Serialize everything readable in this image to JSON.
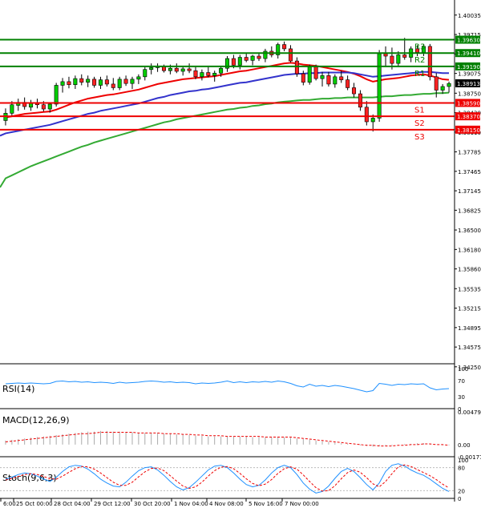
{
  "chart_data": [
    {
      "type": "candlestick",
      "panel": "price",
      "title": "",
      "xlabel": "",
      "ylabel": "",
      "ylim": [
        1.343,
        1.4023
      ],
      "y_ticks": [
        "1.40035",
        "1.39715",
        "1.39395",
        "1.39075",
        "1.38750",
        "1.38430",
        "1.38110",
        "1.37785",
        "1.37465",
        "1.37145",
        "1.36825",
        "1.36500",
        "1.36180",
        "1.35860",
        "1.35535",
        "1.35215",
        "1.34895",
        "1.34575",
        "1.34250"
      ],
      "x_ticks": [
        "24 Oct 16:00",
        "25 Oct 00:00",
        "28 Oct 04:00",
        "29 Oct 12:00",
        "30 Oct 20:00",
        "1 Nov 04:00",
        "4 Nov 08:00",
        "5 Nov 16:00",
        "7 Nov 00:00"
      ],
      "x_tick_display": [
        "6:00",
        "25 Oct 00:00",
        "28 Oct 04:00",
        "29 Oct 12:00",
        "30 Oct 20:00",
        "1 Nov 04:00",
        "4 Nov 08:00",
        "5 Nov 16:00",
        "7 Nov 00:00"
      ],
      "current_price": "1.38913",
      "levels": [
        {
          "name": "R3",
          "value": "1.39630",
          "color": "#008000"
        },
        {
          "name": "R2",
          "value": "1.39410",
          "color": "#008000"
        },
        {
          "name": "R1",
          "value": "1.39190",
          "color": "#008000"
        },
        {
          "name": "S1",
          "value": "1.38590",
          "color": "#ee0000"
        },
        {
          "name": "S2",
          "value": "1.38370",
          "color": "#ee0000"
        },
        {
          "name": "S3",
          "value": "1.38150",
          "color": "#ee0000"
        }
      ],
      "candles": [
        [
          1.383,
          1.385,
          1.3822,
          1.3842
        ],
        [
          1.3842,
          1.3862,
          1.3836,
          1.3856
        ],
        [
          1.3855,
          1.3866,
          1.3846,
          1.386
        ],
        [
          1.386,
          1.3868,
          1.3848,
          1.3853
        ],
        [
          1.3852,
          1.3864,
          1.3846,
          1.3858
        ],
        [
          1.3858,
          1.3866,
          1.385,
          1.3856
        ],
        [
          1.3856,
          1.3862,
          1.3845,
          1.3849
        ],
        [
          1.3849,
          1.386,
          1.3843,
          1.3857
        ],
        [
          1.3857,
          1.3892,
          1.3853,
          1.3888
        ],
        [
          1.3888,
          1.39,
          1.3876,
          1.3894
        ],
        [
          1.3894,
          1.3902,
          1.3883,
          1.3889
        ],
        [
          1.3889,
          1.3904,
          1.3882,
          1.3899
        ],
        [
          1.3899,
          1.3906,
          1.3888,
          1.3893
        ],
        [
          1.3893,
          1.3904,
          1.3885,
          1.3898
        ],
        [
          1.3898,
          1.3902,
          1.3884,
          1.3888
        ],
        [
          1.3888,
          1.3902,
          1.3882,
          1.3897
        ],
        [
          1.3897,
          1.3904,
          1.3886,
          1.389
        ],
        [
          1.389,
          1.39,
          1.388,
          1.3884
        ],
        [
          1.3884,
          1.3902,
          1.388,
          1.3898
        ],
        [
          1.3898,
          1.3904,
          1.3887,
          1.3891
        ],
        [
          1.3891,
          1.3902,
          1.3882,
          1.3898
        ],
        [
          1.3898,
          1.3906,
          1.389,
          1.3902
        ],
        [
          1.3902,
          1.3918,
          1.3896,
          1.3914
        ],
        [
          1.3914,
          1.3924,
          1.3906,
          1.3917
        ],
        [
          1.3917,
          1.3924,
          1.391,
          1.3919
        ],
        [
          1.3919,
          1.3922,
          1.3909,
          1.3912
        ],
        [
          1.3912,
          1.3922,
          1.3906,
          1.3916
        ],
        [
          1.3916,
          1.3924,
          1.3908,
          1.3911
        ],
        [
          1.3911,
          1.392,
          1.3904,
          1.3915
        ],
        [
          1.3915,
          1.3924,
          1.3908,
          1.3912
        ],
        [
          1.3912,
          1.3918,
          1.3898,
          1.3902
        ],
        [
          1.3902,
          1.3914,
          1.3896,
          1.3909
        ],
        [
          1.3909,
          1.3918,
          1.3901,
          1.3904
        ],
        [
          1.3904,
          1.3912,
          1.3894,
          1.3908
        ],
        [
          1.3908,
          1.392,
          1.3902,
          1.3916
        ],
        [
          1.3916,
          1.3936,
          1.391,
          1.3932
        ],
        [
          1.3932,
          1.3938,
          1.3916,
          1.3921
        ],
        [
          1.3921,
          1.3938,
          1.3914,
          1.3934
        ],
        [
          1.3934,
          1.3942,
          1.3926,
          1.3929
        ],
        [
          1.3929,
          1.3938,
          1.3921,
          1.3936
        ],
        [
          1.3936,
          1.3942,
          1.3928,
          1.3932
        ],
        [
          1.3932,
          1.3948,
          1.3926,
          1.3944
        ],
        [
          1.3944,
          1.3952,
          1.3934,
          1.3938
        ],
        [
          1.3938,
          1.3958,
          1.3932,
          1.3955
        ],
        [
          1.3955,
          1.396,
          1.3944,
          1.3948
        ],
        [
          1.3948,
          1.3954,
          1.3926,
          1.3928
        ],
        [
          1.3928,
          1.3934,
          1.3902,
          1.3907
        ],
        [
          1.3907,
          1.3912,
          1.3888,
          1.3893
        ],
        [
          1.3893,
          1.3922,
          1.3889,
          1.3918
        ],
        [
          1.3918,
          1.3922,
          1.3896,
          1.3899
        ],
        [
          1.3899,
          1.391,
          1.3886,
          1.3904
        ],
        [
          1.3904,
          1.391,
          1.3886,
          1.389
        ],
        [
          1.389,
          1.3906,
          1.3884,
          1.3902
        ],
        [
          1.3902,
          1.3912,
          1.3892,
          1.3897
        ],
        [
          1.3897,
          1.3904,
          1.388,
          1.3884
        ],
        [
          1.3884,
          1.3892,
          1.3868,
          1.3874
        ],
        [
          1.3874,
          1.388,
          1.3846,
          1.3852
        ],
        [
          1.3852,
          1.3862,
          1.3822,
          1.3828
        ],
        [
          1.3828,
          1.384,
          1.3812,
          1.3834
        ],
        [
          1.3834,
          1.3946,
          1.3828,
          1.394
        ],
        [
          1.394,
          1.3952,
          1.3918,
          1.3936
        ],
        [
          1.3936,
          1.395,
          1.3914,
          1.3924
        ],
        [
          1.3924,
          1.3944,
          1.3918,
          1.3938
        ],
        [
          1.3938,
          1.3966,
          1.393,
          1.3934
        ],
        [
          1.3934,
          1.3952,
          1.3926,
          1.3948
        ],
        [
          1.3948,
          1.3954,
          1.3936,
          1.3942
        ],
        [
          1.3942,
          1.3956,
          1.3936,
          1.3952
        ],
        [
          1.3952,
          1.3956,
          1.3896,
          1.3902
        ],
        [
          1.3902,
          1.3908,
          1.3868,
          1.388
        ],
        [
          1.388,
          1.389,
          1.3874,
          1.3886
        ],
        [
          1.3886,
          1.3894,
          1.3876,
          1.3891
        ]
      ],
      "series": [
        {
          "name": "",
          "color": "#ee0000",
          "values": [
            1.3835,
            1.3837,
            1.3839,
            1.3841,
            1.3842,
            1.3843,
            1.3844,
            1.3845,
            1.3848,
            1.3852,
            1.3856,
            1.386,
            1.3863,
            1.3866,
            1.3868,
            1.387,
            1.3872,
            1.3873,
            1.3875,
            1.3877,
            1.3879,
            1.3881,
            1.3884,
            1.3887,
            1.389,
            1.3892,
            1.3894,
            1.3896,
            1.3898,
            1.3899,
            1.39,
            1.3901,
            1.3902,
            1.3903,
            1.3905,
            1.3907,
            1.3909,
            1.3911,
            1.3912,
            1.3914,
            1.3916,
            1.3918,
            1.392,
            1.3922,
            1.3924,
            1.3925,
            1.3924,
            1.3922,
            1.3921,
            1.392,
            1.3918,
            1.3916,
            1.3914,
            1.3912,
            1.391,
            1.3907,
            1.3903,
            1.3898,
            1.3894,
            1.3896,
            1.3898,
            1.3899,
            1.39,
            1.3902,
            1.3904,
            1.3905,
            1.3906,
            1.3904,
            1.3901,
            1.3898,
            1.3897
          ]
        },
        {
          "name": "",
          "color": "#3333cc",
          "values": [
            1.3809,
            1.3811,
            1.3813,
            1.3815,
            1.3817,
            1.3819,
            1.3821,
            1.3823,
            1.3826,
            1.3829,
            1.3832,
            1.3835,
            1.3838,
            1.3841,
            1.3843,
            1.3846,
            1.3848,
            1.385,
            1.3852,
            1.3854,
            1.3856,
            1.3858,
            1.3861,
            1.3864,
            1.3867,
            1.3869,
            1.3872,
            1.3874,
            1.3876,
            1.3878,
            1.3879,
            1.3881,
            1.3882,
            1.3884,
            1.3886,
            1.3888,
            1.389,
            1.3892,
            1.3893,
            1.3895,
            1.3897,
            1.3899,
            1.3901,
            1.3903,
            1.3905,
            1.3906,
            1.3907,
            1.3907,
            1.3908,
            1.3908,
            1.3909,
            1.3909,
            1.3909,
            1.3909,
            1.3909,
            1.3908,
            1.3906,
            1.3904,
            1.3902,
            1.3903,
            1.3904,
            1.3905,
            1.3906,
            1.3907,
            1.3908,
            1.3909,
            1.391,
            1.391,
            1.3909,
            1.3908,
            1.3908
          ]
        },
        {
          "name": "",
          "color": "#33aa33",
          "values": [
            1.3735,
            1.374,
            1.3745,
            1.375,
            1.3755,
            1.3759,
            1.3763,
            1.3767,
            1.3771,
            1.3775,
            1.3779,
            1.3783,
            1.3787,
            1.379,
            1.3794,
            1.3797,
            1.38,
            1.3803,
            1.3806,
            1.3809,
            1.3812,
            1.3815,
            1.3818,
            1.3821,
            1.3824,
            1.3827,
            1.3829,
            1.3832,
            1.3834,
            1.3836,
            1.3838,
            1.384,
            1.3842,
            1.3844,
            1.3846,
            1.3848,
            1.3849,
            1.3851,
            1.3852,
            1.3854,
            1.3855,
            1.3857,
            1.3858,
            1.386,
            1.3861,
            1.3862,
            1.3863,
            1.3864,
            1.3864,
            1.3865,
            1.3866,
            1.3866,
            1.3867,
            1.3867,
            1.3868,
            1.3868,
            1.3868,
            1.3868,
            1.3868,
            1.3869,
            1.387,
            1.387,
            1.3871,
            1.3872,
            1.3872,
            1.3873,
            1.3874,
            1.3874,
            1.3875,
            1.3875,
            1.3876
          ]
        }
      ]
    },
    {
      "type": "line",
      "panel": "rsi",
      "label": "RSI(14)",
      "ylim": [
        0,
        100
      ],
      "y_ticks": [
        "100",
        "70",
        "30",
        "0"
      ],
      "color": "#1e90ff",
      "values": [
        62,
        63,
        64,
        63,
        64,
        63,
        62,
        63,
        68,
        69,
        67,
        68,
        66,
        67,
        65,
        66,
        65,
        63,
        66,
        64,
        65,
        66,
        68,
        69,
        68,
        66,
        67,
        65,
        66,
        65,
        62,
        64,
        63,
        64,
        66,
        69,
        65,
        67,
        65,
        67,
        66,
        68,
        66,
        69,
        67,
        63,
        57,
        54,
        61,
        56,
        58,
        55,
        58,
        56,
        53,
        50,
        46,
        42,
        45,
        63,
        61,
        58,
        61,
        60,
        62,
        61,
        62,
        52,
        47,
        49,
        50
      ]
    },
    {
      "type": "bar",
      "panel": "macd",
      "label": "MACD(12,26,9)",
      "ylim": [
        -0.001778,
        0.004799
      ],
      "y_ticks": [
        "0.004799",
        "0.00",
        "-0.001778"
      ],
      "histogram_color": "#aaaaaa",
      "signal_color": "#ee0000",
      "histogram": [
        0.0006,
        0.0007,
        0.0008,
        0.0009,
        0.001,
        0.0011,
        0.0012,
        0.0013,
        0.0014,
        0.0015,
        0.0016,
        0.0017,
        0.0018,
        0.0019,
        0.0019,
        0.002,
        0.002,
        0.0019,
        0.0019,
        0.0018,
        0.0018,
        0.0017,
        0.0017,
        0.0017,
        0.0017,
        0.0016,
        0.0016,
        0.0015,
        0.0015,
        0.0014,
        0.0013,
        0.0013,
        0.0012,
        0.0012,
        0.0012,
        0.0012,
        0.0012,
        0.0012,
        0.0012,
        0.0011,
        0.0011,
        0.0011,
        0.0011,
        0.0011,
        0.0011,
        0.001,
        0.0009,
        0.0008,
        0.0007,
        0.0006,
        0.0005,
        0.0004,
        0.0003,
        0.0002,
        0.0001,
        0.0,
        -0.0001,
        -0.0002,
        -0.0003,
        -0.0002,
        -0.0001,
        -0.0001,
        0.0,
        0.0001,
        0.0001,
        0.0002,
        0.0002,
        0.0001,
        0.0,
        -0.0001,
        -0.0001
      ],
      "signal": [
        0.0004,
        0.0005,
        0.0006,
        0.0007,
        0.0008,
        0.0009,
        0.001,
        0.0011,
        0.0012,
        0.0013,
        0.0014,
        0.0015,
        0.0016,
        0.0016,
        0.0017,
        0.0018,
        0.0018,
        0.0018,
        0.0018,
        0.0018,
        0.0018,
        0.0017,
        0.0017,
        0.0017,
        0.0017,
        0.0016,
        0.0016,
        0.0016,
        0.0015,
        0.0015,
        0.0014,
        0.0014,
        0.0013,
        0.0013,
        0.0013,
        0.0012,
        0.0012,
        0.0012,
        0.0012,
        0.0012,
        0.0012,
        0.0011,
        0.0011,
        0.0011,
        0.0011,
        0.0011,
        0.001,
        0.0009,
        0.0008,
        0.0007,
        0.0006,
        0.0005,
        0.0004,
        0.0003,
        0.0002,
        0.0001,
        0.0,
        -0.0001,
        -0.0001,
        -0.0002,
        -0.0002,
        -0.0002,
        -0.0001,
        -0.0001,
        0.0,
        0.0,
        0.0001,
        0.0001,
        0.0,
        0.0,
        -0.0001
      ]
    },
    {
      "type": "line",
      "panel": "stoch",
      "label": "Stoch(9,6,3)",
      "ylim": [
        0,
        100
      ],
      "y_ticks": [
        "100",
        "80",
        "20",
        "0"
      ],
      "series": [
        {
          "name": "",
          "color": "#1e90ff",
          "values": [
            50,
            55,
            62,
            66,
            64,
            58,
            50,
            44,
            55,
            70,
            82,
            86,
            84,
            76,
            64,
            50,
            40,
            32,
            30,
            42,
            58,
            72,
            80,
            82,
            74,
            60,
            44,
            30,
            22,
            28,
            42,
            58,
            74,
            84,
            86,
            80,
            66,
            50,
            36,
            30,
            34,
            48,
            66,
            80,
            86,
            80,
            62,
            40,
            24,
            14,
            18,
            32,
            52,
            70,
            78,
            70,
            54,
            36,
            22,
            40,
            70,
            86,
            90,
            84,
            74,
            66,
            60,
            50,
            38,
            26,
            18
          ]
        },
        {
          "name": "",
          "color": "#ee0000",
          "values": [
            48,
            52,
            57,
            62,
            64,
            62,
            57,
            51,
            50,
            58,
            68,
            77,
            83,
            82,
            76,
            66,
            54,
            42,
            34,
            34,
            42,
            56,
            69,
            78,
            79,
            72,
            59,
            45,
            32,
            26,
            30,
            42,
            58,
            72,
            81,
            83,
            77,
            65,
            51,
            39,
            33,
            37,
            49,
            65,
            77,
            82,
            76,
            61,
            44,
            28,
            19,
            20,
            33,
            51,
            67,
            74,
            68,
            54,
            38,
            30,
            44,
            64,
            82,
            87,
            83,
            75,
            67,
            59,
            49,
            37,
            27
          ]
        }
      ]
    }
  ]
}
